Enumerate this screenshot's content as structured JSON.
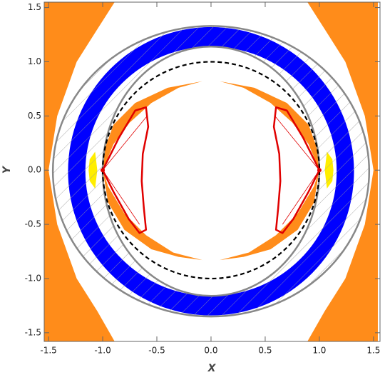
{
  "chart_data": {
    "type": "region",
    "x_label": "X",
    "y_label": "Y",
    "xlim": [
      -1.54,
      1.56
    ],
    "ylim": [
      -1.58,
      1.55
    ],
    "xticks": [
      -1.5,
      {
        "value": -1,
        "label": "-1.0"
      },
      -0.5,
      {
        "value": 0,
        "label": "0.0"
      },
      0.5,
      {
        "value": 1,
        "label": "1.0"
      },
      1.5
    ],
    "yticks": [
      -1.5,
      {
        "value": -1,
        "label": "-1.0"
      },
      -0.5,
      {
        "value": 0,
        "label": "0.0"
      },
      0.5,
      {
        "value": 1,
        "label": "1.0"
      },
      1.5
    ],
    "mirror_x": true,
    "regions": [
      {
        "color": "#ff8c1a",
        "points": [
          [
            -1.54,
            1.55
          ],
          [
            -0.89,
            1.55
          ],
          [
            -1.05,
            1.3
          ],
          [
            -1.24,
            1.0
          ],
          [
            -1.42,
            0.5
          ],
          [
            -1.5,
            0
          ],
          [
            -1.42,
            -0.5
          ],
          [
            -1.24,
            -1.0
          ],
          [
            -1.05,
            -1.3
          ],
          [
            -0.89,
            -1.58
          ],
          [
            -1.54,
            -1.58
          ]
        ]
      },
      {
        "color": "#ff8c1a",
        "points": [
          [
            -0.08,
            0.82
          ],
          [
            -0.4,
            0.76
          ],
          [
            -0.7,
            0.62
          ],
          [
            -0.9,
            0.42
          ],
          [
            -0.98,
            0.2
          ],
          [
            -1.0,
            0.0
          ],
          [
            -0.9,
            0.24
          ],
          [
            -0.75,
            0.44
          ],
          [
            -0.55,
            0.62
          ],
          [
            -0.3,
            0.76
          ]
        ]
      },
      {
        "color": "#ff8c1a",
        "points": [
          [
            -1.0,
            0.0
          ],
          [
            -0.95,
            -0.3
          ],
          [
            -0.8,
            -0.55
          ],
          [
            -0.55,
            -0.73
          ],
          [
            -0.3,
            -0.8
          ],
          [
            -0.08,
            -0.83
          ],
          [
            -0.35,
            -0.76
          ],
          [
            -0.6,
            -0.6
          ],
          [
            -0.8,
            -0.4
          ],
          [
            -0.95,
            -0.15
          ]
        ]
      },
      {
        "color": "#ffee00",
        "points": [
          [
            -1.07,
            0.17
          ],
          [
            -1.12,
            0.1
          ],
          [
            -1.13,
            0
          ],
          [
            -1.12,
            -0.1
          ],
          [
            -1.07,
            -0.17
          ],
          [
            -1.05,
            0
          ]
        ]
      }
    ],
    "ring": {
      "color": "#0000ff",
      "cy": -0.01,
      "outer": [
        1.32,
        1.33
      ],
      "inner": [
        1.16,
        1.15
      ]
    },
    "hatch": {
      "color": "#9a9a9a",
      "outer": [
        1.46,
        1.34
      ],
      "inner": [
        1.0,
        1.15
      ],
      "cy": -0.01
    },
    "ellipses": [
      {
        "color": "#888888",
        "cx": 0,
        "cy": -0.01,
        "rx": 1.46,
        "ry": 1.34,
        "dashed": false
      },
      {
        "color": "#888888",
        "cx": 0,
        "cy": -0.01,
        "rx": 1.0,
        "ry": 1.15,
        "dashed": false
      },
      {
        "color": "#000000",
        "cx": 0,
        "cy": 0,
        "rx": 1.0,
        "ry": 1.0,
        "dashed": true
      }
    ],
    "curves": [
      {
        "color": "#e00000",
        "width": 2.5,
        "points": [
          [
            -1,
            0
          ],
          [
            -0.85,
            0.3
          ],
          [
            -0.7,
            0.55
          ],
          [
            -0.6,
            0.58
          ],
          [
            -0.58,
            0.4
          ],
          [
            -0.63,
            0.15
          ],
          [
            -0.64,
            -0.1
          ],
          [
            -0.62,
            -0.35
          ],
          [
            -0.6,
            -0.55
          ],
          [
            -0.66,
            -0.58
          ],
          [
            -0.76,
            -0.45
          ],
          [
            -0.9,
            -0.2
          ],
          [
            -1,
            0
          ]
        ]
      },
      {
        "color": "#e00000",
        "width": 0.8,
        "points": [
          [
            -1,
            0
          ],
          [
            -0.59,
            0.5
          ]
        ]
      },
      {
        "color": "#e00000",
        "width": 0.8,
        "points": [
          [
            -1,
            0
          ],
          [
            -0.66,
            -0.5
          ]
        ]
      }
    ],
    "points": {
      "color": "#e00000",
      "x": [
        -1,
        1
      ],
      "y": [
        0,
        0
      ]
    }
  }
}
